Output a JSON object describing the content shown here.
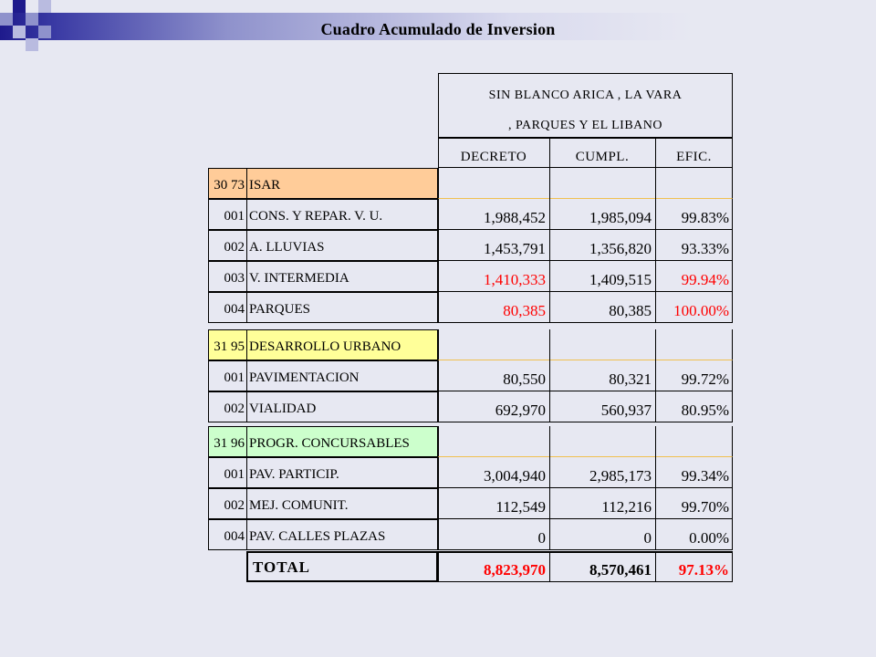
{
  "title": "Cuadro Acumulado de Inversion",
  "colors": {
    "band_dark": "#1e1a8c",
    "isar_fill": "#ffcc99",
    "desarrollo_fill": "#ffff99",
    "progr_fill": "#ccffcc",
    "highlight_red": "#ff0000"
  },
  "header": {
    "group_line1": "SIN BLANCO ARICA  , LA VARA",
    "group_line2": ", PARQUES Y EL LIBANO",
    "col_decreto": "DECRETO",
    "col_cumpl": "CUMPL.",
    "col_efic": "EFIC."
  },
  "rows": [
    {
      "code": "30 73",
      "label": "ISAR",
      "decreto": "",
      "cumpl": "",
      "efic": ""
    },
    {
      "code": "001",
      "label": "CONS. Y REPAR. V. U.",
      "decreto": "1,988,452",
      "cumpl": "1,985,094",
      "efic": "99.83%"
    },
    {
      "code": "002",
      "label": "A. LLUVIAS",
      "decreto": "1,453,791",
      "cumpl": "1,356,820",
      "efic": "93.33%"
    },
    {
      "code": "003",
      "label": "V. INTERMEDIA",
      "decreto": "1,410,333",
      "cumpl": "1,409,515",
      "efic": "99.94%"
    },
    {
      "code": "004",
      "label": "PARQUES",
      "decreto": "80,385",
      "cumpl": "80,385",
      "efic": "100.00%"
    },
    {
      "code": "31 95",
      "label": "DESARROLLO URBANO",
      "decreto": "",
      "cumpl": "",
      "efic": ""
    },
    {
      "code": "001",
      "label": "PAVIMENTACION",
      "decreto": "80,550",
      "cumpl": "80,321",
      "efic": "99.72%"
    },
    {
      "code": "002",
      "label": "VIALIDAD",
      "decreto": "692,970",
      "cumpl": "560,937",
      "efic": "80.95%"
    },
    {
      "code": "31 96",
      "label": "PROGR. CONCURSABLES",
      "decreto": "",
      "cumpl": "",
      "efic": ""
    },
    {
      "code": "001",
      "label": "PAV. PARTICIP.",
      "decreto": "3,004,940",
      "cumpl": "2,985,173",
      "efic": "99.34%"
    },
    {
      "code": "002",
      "label": "MEJ. COMUNIT.",
      "decreto": "112,549",
      "cumpl": "112,216",
      "efic": "99.70%"
    },
    {
      "code": "004",
      "label": "PAV. CALLES PLAZAS",
      "decreto": "0",
      "cumpl": "0",
      "efic": "0.00%"
    }
  ],
  "total": {
    "label": "TOTAL",
    "decreto": "8,823,970",
    "cumpl": "8,570,461",
    "efic": "97.13%"
  }
}
